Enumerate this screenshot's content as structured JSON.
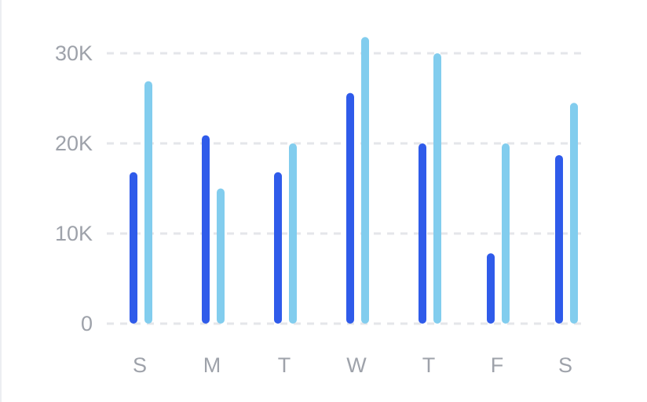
{
  "chart_data": {
    "type": "bar",
    "categories": [
      "S",
      "M",
      "T",
      "W",
      "T",
      "F",
      "S"
    ],
    "series": [
      {
        "values": [
          16800,
          20900,
          16800,
          25600,
          20000,
          7800,
          18700
        ]
      },
      {
        "values": [
          26900,
          15000,
          20000,
          31800,
          30000,
          20000,
          24500
        ]
      }
    ],
    "y_ticks": [
      {
        "value": 0,
        "label": "0"
      },
      {
        "value": 10000,
        "label": "10K"
      },
      {
        "value": 20000,
        "label": "20K"
      },
      {
        "value": 30000,
        "label": "30K"
      }
    ],
    "ylim": [
      0,
      30000
    ],
    "grid": true,
    "colors": {
      "series": [
        "#2f5bea",
        "#82cdee"
      ],
      "grid": "#e4e6ea",
      "tick_text": "#9ea2aa"
    }
  }
}
